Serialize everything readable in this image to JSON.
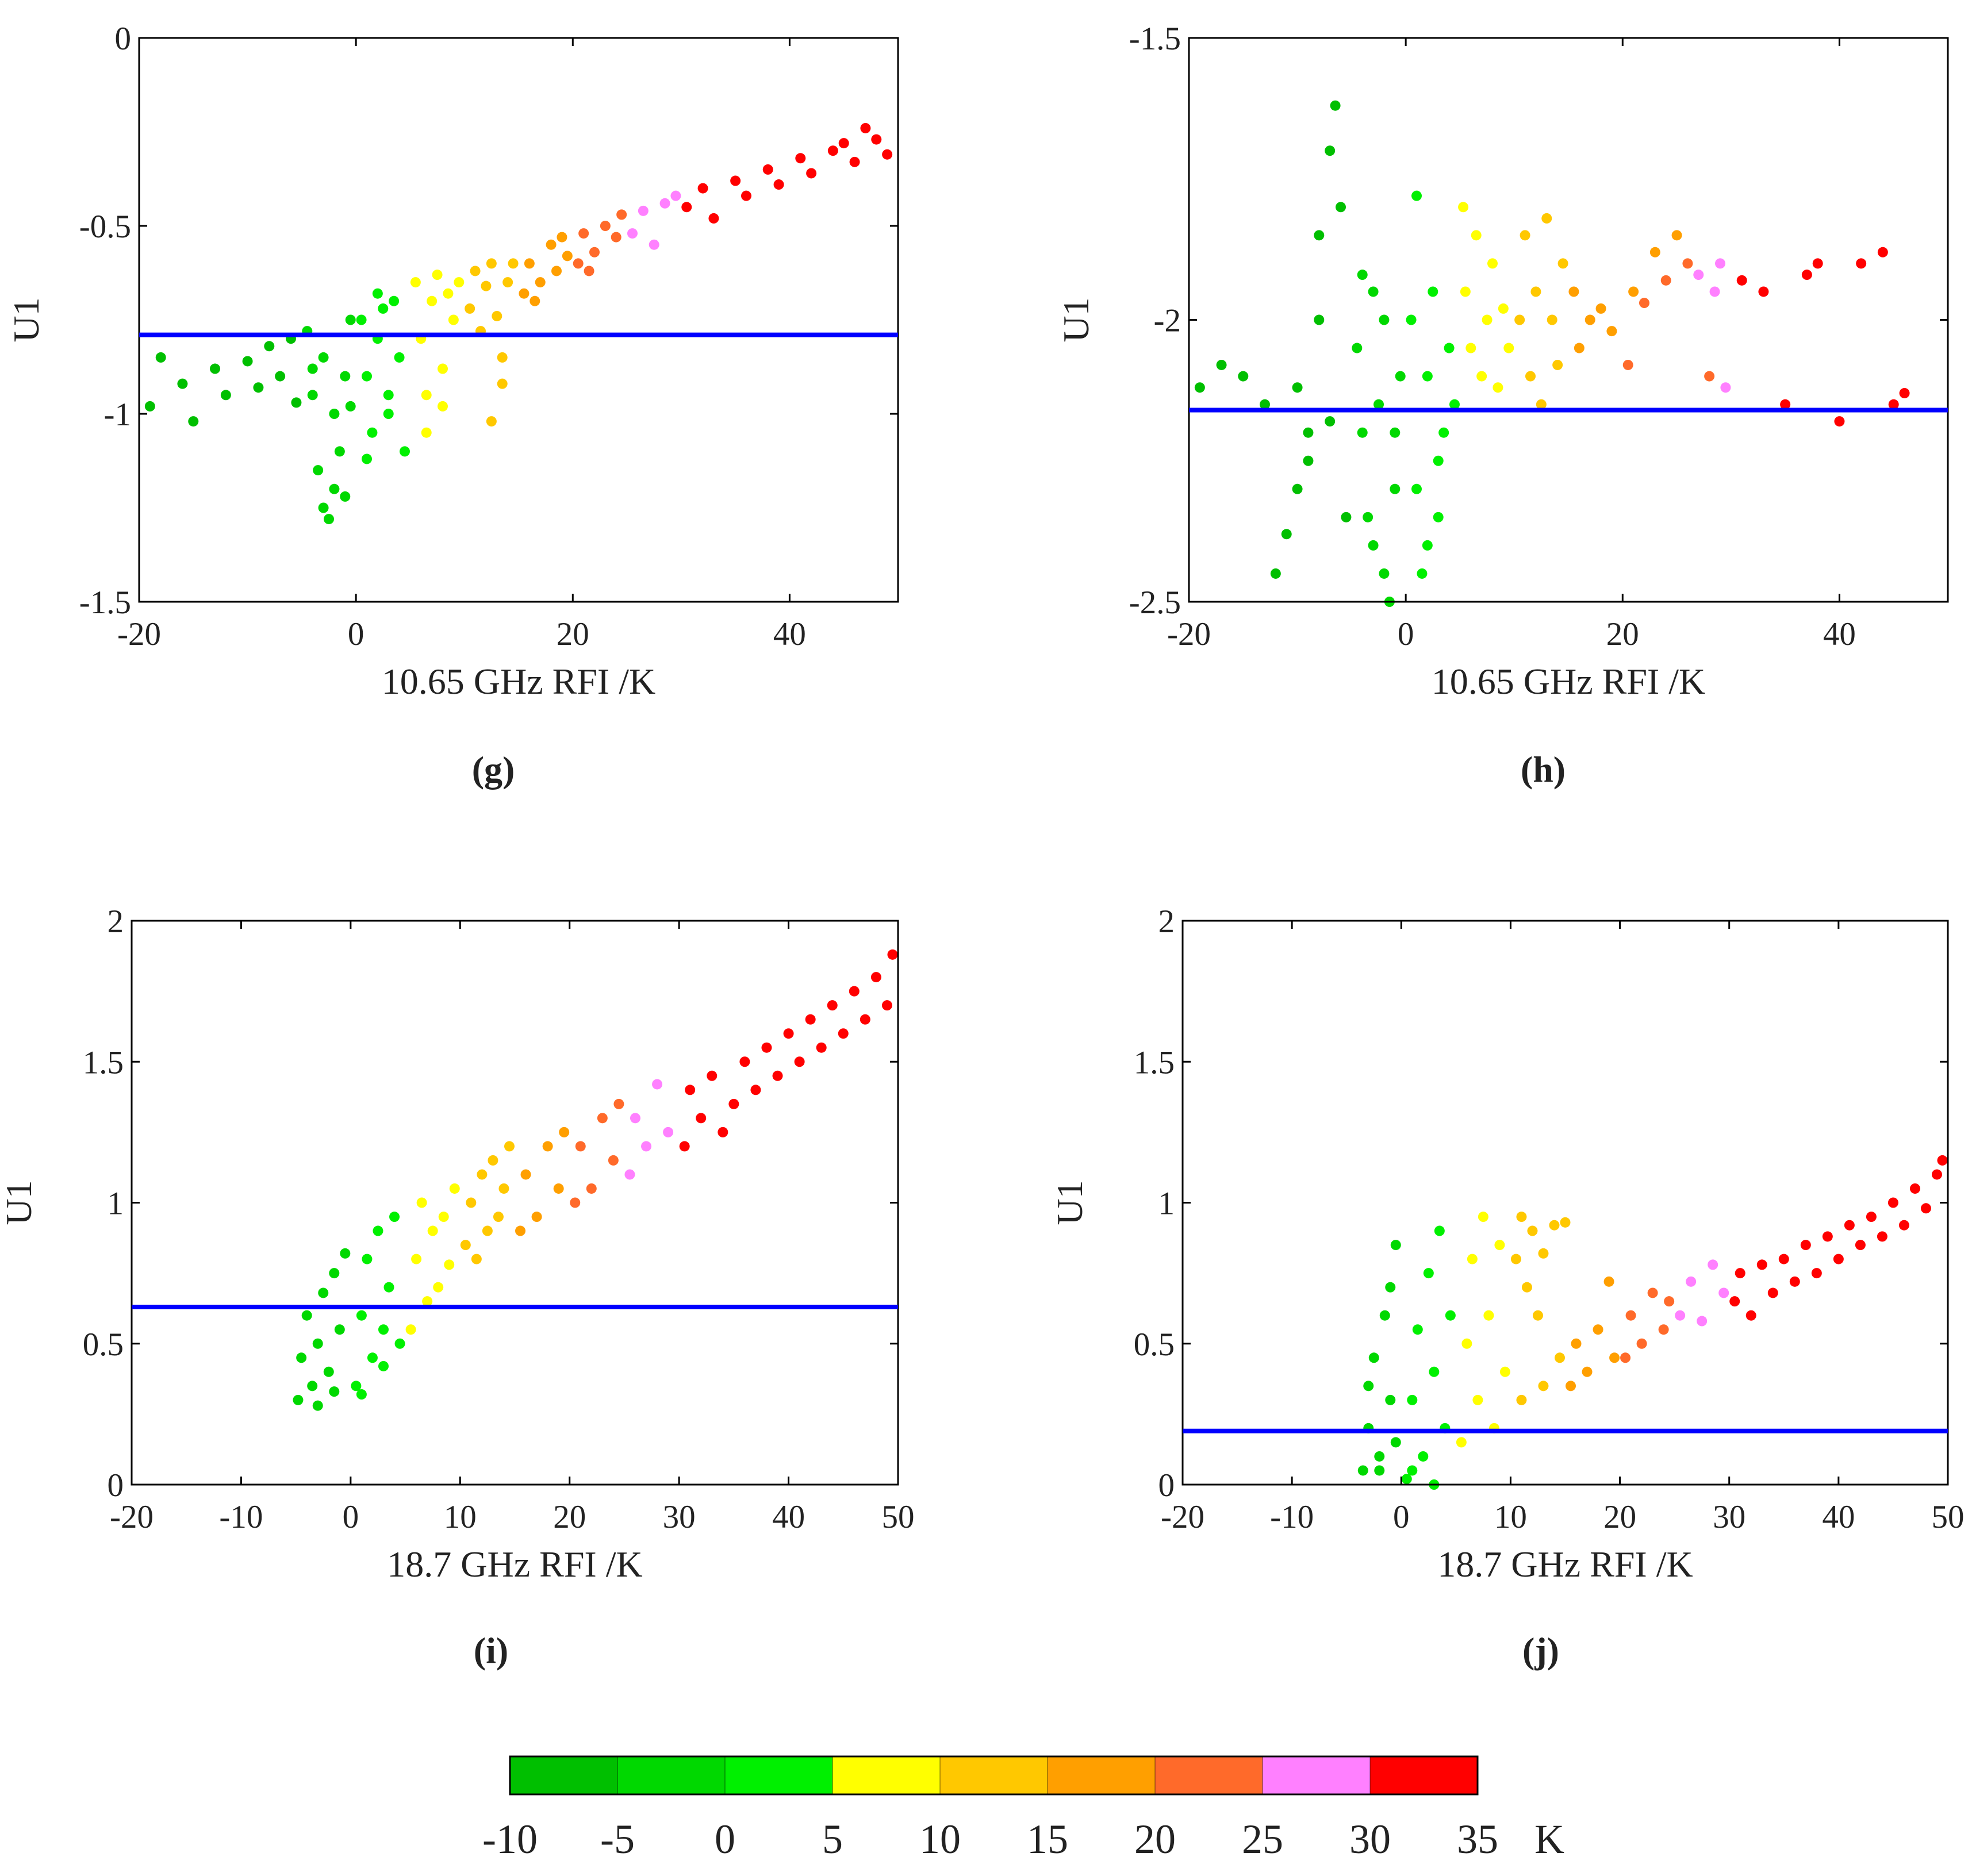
{
  "chart_data": [
    {
      "type": "scatter",
      "label": "(g)",
      "xlabel": "10.65 GHz RFI /K",
      "ylabel": "U1",
      "xlim": [
        -20,
        50
      ],
      "xticks": [
        -20,
        0,
        20,
        40
      ],
      "ylim": [
        -1.5,
        0
      ],
      "yticks": [
        0,
        -0.5,
        -1,
        -1.5
      ],
      "hline": -0.79,
      "hline_color": "#0000ff",
      "series": [
        {
          "color": "#00bf00",
          "x": [
            -19,
            -18,
            -16,
            -15,
            -13,
            -12,
            -10,
            -9,
            -8,
            -7,
            -6,
            -5.5
          ],
          "y": [
            -0.98,
            -0.85,
            -0.92,
            -1.02,
            -0.88,
            -0.95,
            -0.86,
            -0.93,
            -0.82,
            -0.9,
            -0.8,
            -0.97
          ]
        },
        {
          "color": "#00d800",
          "x": [
            -4.5,
            -4,
            -3.5,
            -3,
            -2.5,
            -2,
            -1.5,
            -1,
            -0.5,
            -3,
            -2,
            -1,
            -4,
            -0.5
          ],
          "y": [
            -0.78,
            -0.95,
            -1.15,
            -1.25,
            -1.28,
            -1.2,
            -1.1,
            -0.9,
            -0.75,
            -0.85,
            -1.0,
            -1.22,
            -0.88,
            -0.98
          ]
        },
        {
          "color": "#00f000",
          "x": [
            0.5,
            1,
            1.5,
            2,
            2.5,
            3,
            3.5,
            4,
            4.5,
            1,
            3,
            2
          ],
          "y": [
            -0.75,
            -0.9,
            -1.05,
            -0.8,
            -0.72,
            -0.95,
            -0.7,
            -0.85,
            -1.1,
            -1.12,
            -1.0,
            -0.68
          ]
        },
        {
          "color": "#ffff00",
          "x": [
            5.5,
            6,
            6.5,
            7,
            7.5,
            8,
            8.5,
            9,
            9.5,
            6.5,
            8
          ],
          "y": [
            -0.65,
            -0.8,
            -0.95,
            -0.7,
            -0.63,
            -0.88,
            -0.68,
            -0.75,
            -0.65,
            -1.05,
            -0.98
          ]
        },
        {
          "color": "#ffc800",
          "x": [
            10.5,
            11,
            11.5,
            12,
            12.5,
            13,
            13.5,
            14,
            14.5,
            12.5,
            13.5
          ],
          "y": [
            -0.72,
            -0.62,
            -0.78,
            -0.66,
            -0.6,
            -0.74,
            -0.85,
            -0.65,
            -0.6,
            -1.02,
            -0.92
          ]
        },
        {
          "color": "#ff9f00",
          "x": [
            15.5,
            16,
            17,
            18,
            18.5,
            19,
            19.5,
            16.5
          ],
          "y": [
            -0.68,
            -0.6,
            -0.65,
            -0.55,
            -0.62,
            -0.53,
            -0.58,
            -0.7
          ]
        },
        {
          "color": "#ff6a2a",
          "x": [
            20.5,
            21,
            22,
            23,
            24,
            24.5,
            21.5
          ],
          "y": [
            -0.6,
            -0.52,
            -0.57,
            -0.5,
            -0.53,
            -0.47,
            -0.62
          ]
        },
        {
          "color": "#ff80ff",
          "x": [
            25.5,
            26.5,
            27.5,
            28.5,
            29.5
          ],
          "y": [
            -0.52,
            -0.46,
            -0.55,
            -0.44,
            -0.42
          ]
        },
        {
          "color": "#ff0000",
          "x": [
            30.5,
            32,
            33,
            35,
            36,
            38,
            39,
            41,
            42,
            44,
            45,
            46,
            47,
            48,
            49
          ],
          "y": [
            -0.45,
            -0.4,
            -0.48,
            -0.38,
            -0.42,
            -0.35,
            -0.39,
            -0.32,
            -0.36,
            -0.3,
            -0.28,
            -0.33,
            -0.24,
            -0.27,
            -0.31
          ]
        }
      ]
    },
    {
      "type": "scatter",
      "label": "(h)",
      "xlabel": "10.65 GHz RFI /K",
      "ylabel": "U1",
      "xlim": [
        -20,
        50
      ],
      "xticks": [
        -20,
        0,
        20,
        40
      ],
      "ylim": [
        -2.5,
        -1.5
      ],
      "yticks": [
        -1.5,
        -2,
        -2.5
      ],
      "hline": -2.16,
      "hline_color": "#0000ff",
      "series": [
        {
          "color": "#00bf00",
          "x": [
            -19,
            -17,
            -15,
            -13,
            -12,
            -11,
            -10,
            -9,
            -8,
            -7,
            -6.5,
            -6,
            -8,
            -9,
            -10,
            -7,
            -5.5
          ],
          "y": [
            -2.12,
            -2.08,
            -2.1,
            -2.15,
            -2.45,
            -2.38,
            -2.3,
            -2.2,
            -1.85,
            -1.7,
            -1.62,
            -1.8,
            -2.0,
            -2.25,
            -2.12,
            -2.18,
            -2.35
          ]
        },
        {
          "color": "#00d800",
          "x": [
            -4.5,
            -4,
            -3.5,
            -3,
            -2.5,
            -2,
            -1.5,
            -1,
            -0.5,
            -3,
            -2,
            -1,
            -4
          ],
          "y": [
            -2.05,
            -2.2,
            -2.35,
            -1.95,
            -2.15,
            -2.45,
            -2.5,
            -2.3,
            -2.1,
            -2.4,
            -2.0,
            -2.2,
            -1.92
          ]
        },
        {
          "color": "#00f000",
          "x": [
            0.5,
            1,
            1.5,
            2,
            2.5,
            3,
            3.5,
            4,
            4.5,
            1,
            2,
            3
          ],
          "y": [
            -2.0,
            -2.3,
            -2.45,
            -2.1,
            -1.95,
            -2.35,
            -2.2,
            -2.05,
            -2.15,
            -1.78,
            -2.4,
            -2.25
          ]
        },
        {
          "color": "#ffff00",
          "x": [
            5.5,
            6,
            6.5,
            7,
            7.5,
            8,
            8.5,
            9,
            9.5,
            5.3
          ],
          "y": [
            -1.95,
            -2.05,
            -1.85,
            -2.1,
            -2.0,
            -1.9,
            -2.12,
            -1.98,
            -2.05,
            -1.8
          ]
        },
        {
          "color": "#ffc800",
          "x": [
            10.5,
            11,
            11.5,
            12,
            12.5,
            13,
            13.5,
            14,
            14.5
          ],
          "y": [
            -2.0,
            -1.85,
            -2.1,
            -1.95,
            -2.15,
            -1.82,
            -2.0,
            -2.08,
            -1.9
          ]
        },
        {
          "color": "#ff9f00",
          "x": [
            15.5,
            16,
            17,
            18,
            19,
            21,
            23,
            25
          ],
          "y": [
            -1.95,
            -2.05,
            -2.0,
            -1.98,
            -2.02,
            -1.95,
            -1.88,
            -1.85
          ]
        },
        {
          "color": "#ff6a2a",
          "x": [
            20.5,
            22,
            24,
            26,
            28
          ],
          "y": [
            -2.08,
            -1.97,
            -1.93,
            -1.9,
            -2.1
          ]
        },
        {
          "color": "#ff80ff",
          "x": [
            27,
            28.5,
            29.5,
            29
          ],
          "y": [
            -1.92,
            -1.95,
            -2.12,
            -1.9
          ]
        },
        {
          "color": "#ff0000",
          "x": [
            31,
            33,
            35,
            37,
            38,
            40,
            42,
            44,
            45,
            46
          ],
          "y": [
            -1.93,
            -1.95,
            -2.15,
            -1.92,
            -1.9,
            -2.18,
            -1.9,
            -1.88,
            -2.15,
            -2.13
          ]
        }
      ]
    },
    {
      "type": "scatter",
      "label": "(i)",
      "xlabel": "18.7 GHz RFI /K",
      "ylabel": "U1",
      "xlim": [
        -20,
        50
      ],
      "xticks": [
        -20,
        -10,
        0,
        10,
        20,
        30,
        40,
        50
      ],
      "ylim": [
        0,
        2
      ],
      "yticks": [
        0,
        0.5,
        1,
        1.5,
        2
      ],
      "hline": 0.63,
      "hline_color": "#0000ff",
      "series": [
        {
          "color": "#00d800",
          "x": [
            -4.8,
            -4.5,
            -4,
            -3.5,
            -3,
            -2.5,
            -2,
            -1.5,
            -1,
            -0.5,
            -3,
            -1.5
          ],
          "y": [
            0.3,
            0.45,
            0.6,
            0.35,
            0.5,
            0.68,
            0.4,
            0.75,
            0.55,
            0.82,
            0.28,
            0.33
          ]
        },
        {
          "color": "#00f000",
          "x": [
            0.5,
            1,
            1.5,
            2,
            2.5,
            3,
            3.5,
            4,
            4.5,
            1,
            3
          ],
          "y": [
            0.35,
            0.6,
            0.8,
            0.45,
            0.9,
            0.55,
            0.7,
            0.95,
            0.5,
            0.32,
            0.42
          ]
        },
        {
          "color": "#ffff00",
          "x": [
            5.5,
            6,
            6.5,
            7,
            7.5,
            8,
            8.5,
            9,
            9.5
          ],
          "y": [
            0.55,
            0.8,
            1.0,
            0.65,
            0.9,
            0.7,
            0.95,
            0.78,
            1.05
          ]
        },
        {
          "color": "#ffc800",
          "x": [
            10.5,
            11,
            11.5,
            12,
            12.5,
            13,
            13.5,
            14,
            14.5
          ],
          "y": [
            0.85,
            1.0,
            0.8,
            1.1,
            0.9,
            1.15,
            0.95,
            1.05,
            1.2
          ]
        },
        {
          "color": "#ff9f00",
          "x": [
            15.5,
            16,
            17,
            18,
            19,
            19.5
          ],
          "y": [
            0.9,
            1.1,
            0.95,
            1.2,
            1.05,
            1.25
          ]
        },
        {
          "color": "#ff6a2a",
          "x": [
            20.5,
            21,
            22,
            23,
            24,
            24.5
          ],
          "y": [
            1.0,
            1.2,
            1.05,
            1.3,
            1.15,
            1.35
          ]
        },
        {
          "color": "#ff80ff",
          "x": [
            25.5,
            26,
            27,
            28,
            29
          ],
          "y": [
            1.1,
            1.3,
            1.2,
            1.42,
            1.25
          ]
        },
        {
          "color": "#ff0000",
          "x": [
            30.5,
            31,
            32,
            33,
            34,
            35,
            36,
            37,
            38,
            39,
            40,
            41,
            42,
            43,
            44,
            45,
            46,
            47,
            48,
            49,
            49.5
          ],
          "y": [
            1.2,
            1.4,
            1.3,
            1.45,
            1.25,
            1.35,
            1.5,
            1.4,
            1.55,
            1.45,
            1.6,
            1.5,
            1.65,
            1.55,
            1.7,
            1.6,
            1.75,
            1.65,
            1.8,
            1.7,
            1.88
          ]
        }
      ]
    },
    {
      "type": "scatter",
      "label": "(j)",
      "xlabel": "18.7 GHz RFI /K",
      "ylabel": "U1",
      "xlim": [
        -20,
        50
      ],
      "xticks": [
        -20,
        -10,
        0,
        10,
        20,
        30,
        40,
        50
      ],
      "ylim": [
        0,
        2
      ],
      "yticks": [
        0,
        0.5,
        1,
        1.5,
        2
      ],
      "hline": 0.19,
      "hline_color": "#0000ff",
      "series": [
        {
          "color": "#00d800",
          "x": [
            -3.5,
            -3,
            -2.5,
            -2,
            -1.5,
            -1,
            -0.5,
            -3,
            -2,
            -1,
            -0.5
          ],
          "y": [
            0.05,
            0.2,
            0.45,
            0.1,
            0.6,
            0.3,
            0.85,
            0.35,
            0.05,
            0.7,
            0.15
          ]
        },
        {
          "color": "#00f000",
          "x": [
            0.5,
            1,
            1.5,
            2,
            2.5,
            3,
            3.5,
            4,
            4.5,
            1,
            3
          ],
          "y": [
            0.02,
            0.3,
            0.55,
            0.1,
            0.75,
            0.4,
            0.9,
            0.2,
            0.6,
            0.05,
            0.0
          ]
        },
        {
          "color": "#ffff00",
          "x": [
            5.5,
            6,
            6.5,
            7,
            7.5,
            8,
            8.5,
            9,
            9.5
          ],
          "y": [
            0.15,
            0.5,
            0.8,
            0.3,
            0.95,
            0.6,
            0.2,
            0.85,
            0.4
          ]
        },
        {
          "color": "#ffc800",
          "x": [
            10.5,
            11,
            11.5,
            12,
            12.5,
            13,
            14,
            15,
            11,
            13,
            14.5
          ],
          "y": [
            0.8,
            0.95,
            0.7,
            0.9,
            0.6,
            0.82,
            0.92,
            0.93,
            0.3,
            0.35,
            0.45
          ]
        },
        {
          "color": "#ff9f00",
          "x": [
            15.5,
            16,
            17,
            18,
            19,
            19.5
          ],
          "y": [
            0.35,
            0.5,
            0.4,
            0.55,
            0.72,
            0.45
          ]
        },
        {
          "color": "#ff6a2a",
          "x": [
            20.5,
            21,
            22,
            23,
            24,
            24.5
          ],
          "y": [
            0.45,
            0.6,
            0.5,
            0.68,
            0.55,
            0.65
          ]
        },
        {
          "color": "#ff80ff",
          "x": [
            25.5,
            26.5,
            27.5,
            28.5,
            29.5
          ],
          "y": [
            0.6,
            0.72,
            0.58,
            0.78,
            0.68
          ]
        },
        {
          "color": "#ff0000",
          "x": [
            30.5,
            31,
            32,
            33,
            34,
            35,
            36,
            37,
            38,
            39,
            40,
            41,
            42,
            43,
            44,
            45,
            46,
            47,
            48,
            49,
            49.5
          ],
          "y": [
            0.65,
            0.75,
            0.6,
            0.78,
            0.68,
            0.8,
            0.72,
            0.85,
            0.75,
            0.88,
            0.8,
            0.92,
            0.85,
            0.95,
            0.88,
            1.0,
            0.92,
            1.05,
            0.98,
            1.1,
            1.15
          ]
        }
      ]
    },
    {
      "type": "colorbar",
      "ticks": [
        -10,
        -5,
        0,
        5,
        10,
        15,
        20,
        25,
        30,
        35
      ],
      "unit": "K",
      "colors": [
        "#00bf00",
        "#00d800",
        "#00f000",
        "#ffff00",
        "#ffc800",
        "#ff9f00",
        "#ff6a2a",
        "#ff80ff",
        "#ff0000"
      ]
    }
  ]
}
